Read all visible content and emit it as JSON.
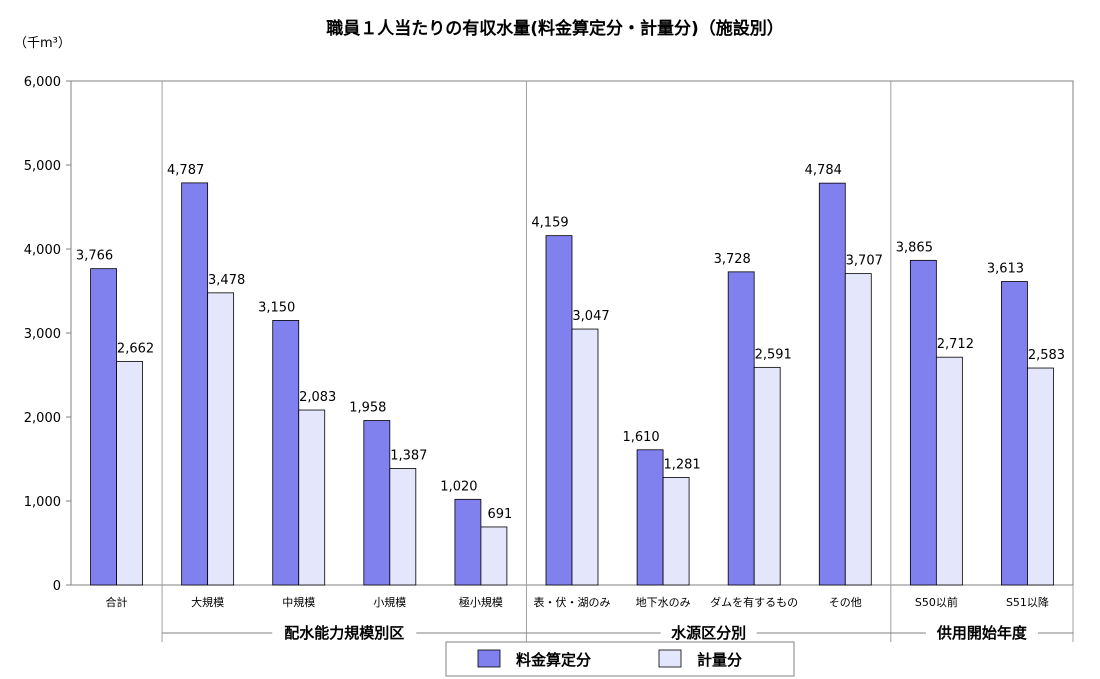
{
  "chart_data": {
    "type": "bar",
    "title": "職員１人当たりの有収水量(料金算定分・計量分)（施設別）",
    "unit_label": "（千m³）",
    "ylim": [
      0,
      6000
    ],
    "yticks": [
      "0",
      "1,000",
      "2,000",
      "3,000",
      "4,000",
      "5,000",
      "6,000"
    ],
    "categories": [
      "合計",
      "大規模",
      "中規模",
      "小規模",
      "極小規模",
      "表・伏・湖のみ",
      "地下水のみ",
      "ダムを有するもの",
      "その他",
      "S50以前",
      "S51以降"
    ],
    "series": [
      {
        "name": "料金算定分",
        "color": "#8080ee",
        "values": [
          3766,
          4787,
          3150,
          1958,
          1020,
          4159,
          1610,
          3728,
          4784,
          3865,
          3613
        ],
        "labels": [
          "3,766",
          "4,787",
          "3,150",
          "1,958",
          "1,020",
          "4,159",
          "1,610",
          "3,728",
          "4,784",
          "3,865",
          "3,613"
        ]
      },
      {
        "name": "計量分",
        "color": "#e4e6fb",
        "values": [
          2662,
          3478,
          2083,
          1387,
          691,
          3047,
          1281,
          2591,
          3707,
          2712,
          2583
        ],
        "labels": [
          "2,662",
          "3,478",
          "2,083",
          "1,387",
          "691",
          "3,047",
          "1,281",
          "2,591",
          "3,707",
          "2,712",
          "2,583"
        ]
      }
    ],
    "groups": [
      {
        "label": "配水能力規模別区",
        "start": 1,
        "end": 4
      },
      {
        "label": "水源区分別",
        "start": 5,
        "end": 8
      },
      {
        "label": "供用開始年度",
        "start": 9,
        "end": 10
      }
    ],
    "grid": false,
    "legend_position": "bottom"
  }
}
